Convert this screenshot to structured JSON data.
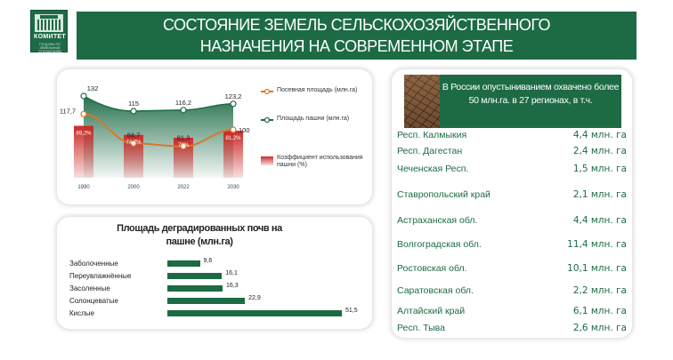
{
  "header": {
    "logo_text": "КОМИТЕТ",
    "logo_sub": "ГОСДУМЫ ПО ЗЕМЕЛЬНЫМ ОТНОШЕНИЯМ",
    "title_line1": "СОСТОЯНИЕ ЗЕМЕЛЬ СЕЛЬСКОХОЗЯЙСТВЕННОГО",
    "title_line2": "НАЗНАЧЕНИЯ НА СОВРЕМЕННОМ  ЭТАПЕ"
  },
  "chart_data": [
    {
      "type": "bar",
      "categories": [
        "1990",
        "2000",
        "2022",
        "2030"
      ],
      "series": [
        {
          "name": "Посевная площадь (млн.га)",
          "values": [
            117.7,
            84.7,
            81.3,
            100
          ],
          "labels": [
            "117,7",
            "84,7",
            "81,3",
            "100"
          ],
          "color": "#d9772a"
        },
        {
          "name": "Площадь пашни (млн.га)",
          "values": [
            132,
            115,
            116.2,
            123.2
          ],
          "labels": [
            "132",
            "115",
            "116,2",
            "123,2"
          ],
          "color": "#1d6b45"
        },
        {
          "name": "Коэффициент использования пашни (%)",
          "values": [
            89.2,
            74.7,
            70,
            81.2
          ],
          "labels": [
            "89,2%",
            "74,7%",
            "70%",
            "81,2%"
          ],
          "color": "#cc2a2a"
        }
      ]
    },
    {
      "type": "bar",
      "title": "Площадь деградированных почв на пашне (млн.га)",
      "categories": [
        "Заболоченные",
        "Переувлажнённые",
        "Засоленные",
        "Солонцеватые",
        "Кислые"
      ],
      "values": [
        9.6,
        16.1,
        16.3,
        22.9,
        51.5
      ],
      "labels": [
        "9,6",
        "16,1",
        "16,3",
        "22,9",
        "51,5"
      ]
    }
  ],
  "legend": {
    "sown": "Посевная площадь (млн.га)",
    "arable": "Площадь пашни (млн.га)",
    "coef": "Коэффициент использования пашни (%)"
  },
  "desert": {
    "callout": "В России опустыниванием охвачено более 50 млн.га. в 27 регионах,  в т.ч.",
    "regions": [
      {
        "name": "Респ. Калмыкия",
        "value": "4,4 млн. га"
      },
      {
        "name": "Респ. Дагестан",
        "value": "2,4 млн. га"
      },
      {
        "name": "Чеченская Респ.",
        "value": "1,5 млн. га"
      },
      {
        "name": "Ставропольский край",
        "value": "2,1 млн. га"
      },
      {
        "name": "Астраханская обл.",
        "value": "4,4 млн. га"
      },
      {
        "name": "Волгоградская обл.",
        "value": "11,4 млн. га"
      },
      {
        "name": "Ростовская обл.",
        "value": "10,1 млн. га"
      },
      {
        "name": "Саратовская обл.",
        "value": "2,2 млн. га"
      },
      {
        "name": "Алтайский край",
        "value": "6,1 млн. га"
      },
      {
        "name": "Респ. Тыва",
        "value": "2,6 млн. га"
      }
    ]
  }
}
